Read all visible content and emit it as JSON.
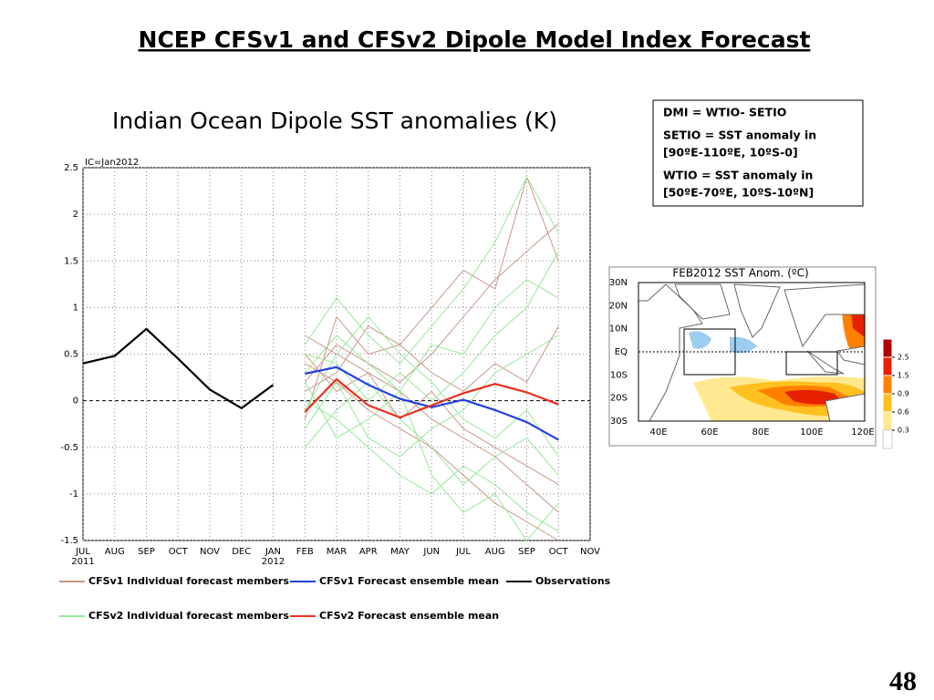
{
  "title": "NCEP CFSv1 and CFSv2 Dipole Model Index Forecast",
  "page_number": "48",
  "info_box": {
    "paragraphs": [
      [
        "DMI = WTIO- SETIO"
      ],
      [
        "SETIO = SST anomaly in",
        "[90ºE-110ºE, 10ºS-0]"
      ],
      [
        "WTIO = SST anomaly in",
        "[50ºE-70ºE, 10ºS-10ºN]"
      ]
    ]
  },
  "map": {
    "title": "FEB2012 SST Anom. (ºC)",
    "lat_labels": [
      "30N",
      "20N",
      "10N",
      "EQ",
      "10S",
      "20S",
      "30S"
    ],
    "lon_labels": [
      "40E",
      "60E",
      "80E",
      "100E",
      "120E"
    ],
    "colorbar": {
      "ticks": [
        2.5,
        1.5,
        0.9,
        0.6,
        0.3
      ],
      "colors": [
        "#b40000",
        "#e62000",
        "#ff8000",
        "#ffc020",
        "#ffe890"
      ]
    }
  },
  "chart_data": {
    "type": "line",
    "title": "Indian Ocean Dipole SST anomalies (K)",
    "annotations": [
      "IC=Jan2012"
    ],
    "categories": [
      "JUL",
      "AUG",
      "SEP",
      "OCT",
      "NOV",
      "DEC",
      "JAN",
      "FEB",
      "MAR",
      "APR",
      "MAY",
      "JUN",
      "JUL",
      "AUG",
      "SEP",
      "OCT",
      "NOV"
    ],
    "x_sublabels": [
      "2011",
      null,
      null,
      null,
      null,
      null,
      "2012",
      null,
      null,
      null,
      null,
      null,
      null,
      null,
      null,
      null,
      null
    ],
    "ylim": [
      -1.5,
      2.5
    ],
    "yticks": [
      -1.5,
      -1,
      -0.5,
      0,
      0.5,
      1,
      1.5,
      2,
      2.5
    ],
    "grid": true,
    "series": [
      {
        "name": "CFSv1 Individual forecast members",
        "color": "#c89888",
        "members": [
          [
            null,
            null,
            null,
            null,
            null,
            null,
            null,
            0.7,
            0.5,
            0.3,
            0.1,
            -0.2,
            -0.4,
            -0.6,
            -0.9,
            -1.2,
            null
          ],
          [
            null,
            null,
            null,
            null,
            null,
            null,
            null,
            0.2,
            0.6,
            0.4,
            0.2,
            0.5,
            0.9,
            1.3,
            1.6,
            1.9,
            null
          ],
          [
            null,
            null,
            null,
            null,
            null,
            null,
            null,
            0.4,
            0.2,
            -0.1,
            -0.3,
            -0.5,
            -0.8,
            -1.1,
            -1.3,
            -1.5,
            null
          ],
          [
            null,
            null,
            null,
            null,
            null,
            null,
            null,
            -0.2,
            0.9,
            0.5,
            0.6,
            0.3,
            0.1,
            0.4,
            0.2,
            0.8,
            null
          ],
          [
            null,
            null,
            null,
            null,
            null,
            null,
            null,
            0.5,
            0.1,
            0.3,
            -0.2,
            0.1,
            -0.3,
            -0.5,
            -0.7,
            -0.9,
            null
          ],
          [
            null,
            null,
            null,
            null,
            null,
            null,
            null,
            0.1,
            0.3,
            0.8,
            0.6,
            1.0,
            1.4,
            1.2,
            2.4,
            1.5,
            null
          ]
        ]
      },
      {
        "name": "CFSv1 Forecast ensemble mean",
        "color": "#2040e0",
        "values": [
          null,
          null,
          null,
          null,
          null,
          null,
          null,
          0.29,
          0.36,
          0.17,
          0.02,
          -0.07,
          0.01,
          -0.1,
          -0.23,
          -0.42,
          null
        ]
      },
      {
        "name": "Observations",
        "color": "#000000",
        "values": [
          0.4,
          0.48,
          0.77,
          0.45,
          0.12,
          -0.08,
          0.17,
          null,
          null,
          null,
          null,
          null,
          null,
          null,
          null,
          null,
          null
        ]
      },
      {
        "name": "CFSv2 Individual forecast members",
        "color": "#98e898",
        "members": [
          [
            null,
            null,
            null,
            null,
            null,
            null,
            null,
            0.6,
            1.1,
            0.7,
            0.4,
            0.8,
            1.2,
            1.7,
            2.4,
            1.8,
            null
          ],
          [
            null,
            null,
            null,
            null,
            null,
            null,
            null,
            -0.3,
            0.2,
            -0.4,
            -0.6,
            -0.3,
            -0.1,
            0.3,
            0.5,
            0.7,
            null
          ],
          [
            null,
            null,
            null,
            null,
            null,
            null,
            null,
            0.0,
            -0.2,
            -0.5,
            -0.8,
            -1.0,
            -0.7,
            -0.9,
            -1.2,
            -1.4,
            null
          ],
          [
            null,
            null,
            null,
            null,
            null,
            null,
            null,
            0.3,
            0.7,
            0.4,
            0.1,
            0.6,
            0.5,
            1.0,
            1.3,
            1.1,
            null
          ],
          [
            null,
            null,
            null,
            null,
            null,
            null,
            null,
            -0.5,
            -0.1,
            0.2,
            -0.2,
            -0.5,
            -0.9,
            -0.6,
            -0.4,
            -0.8,
            null
          ],
          [
            null,
            null,
            null,
            null,
            null,
            null,
            null,
            0.5,
            0.4,
            0.0,
            0.3,
            0.0,
            0.3,
            0.7,
            1.0,
            1.6,
            null
          ],
          [
            null,
            null,
            null,
            null,
            null,
            null,
            null,
            -0.1,
            0.5,
            0.9,
            0.5,
            0.2,
            -0.2,
            -0.4,
            -0.1,
            -0.6,
            null
          ],
          [
            null,
            null,
            null,
            null,
            null,
            null,
            null,
            0.2,
            -0.4,
            -0.2,
            0.1,
            -0.8,
            -1.2,
            -1.0,
            -1.5,
            -1.1,
            null
          ]
        ]
      },
      {
        "name": "CFSv2 Forecast ensemble mean",
        "color": "#e83020",
        "values": [
          null,
          null,
          null,
          null,
          null,
          null,
          null,
          -0.12,
          0.23,
          -0.05,
          -0.18,
          -0.05,
          0.08,
          0.18,
          0.09,
          -0.04,
          null
        ]
      }
    ]
  }
}
